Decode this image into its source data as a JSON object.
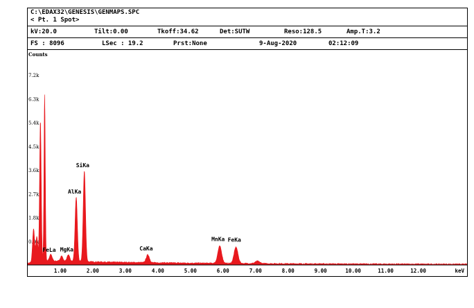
{
  "header": {
    "path": "C:\\EDAX32\\GENESIS\\GENMAPS.SPC",
    "spot": "< Pt.   1 Spot>",
    "kv": "kV:20.0",
    "tilt": "Tilt:0.00",
    "tkoff": "Tkoff:34.62",
    "det": "Det:SUTW",
    "reso": "Reso:128.5",
    "amp": "Amp.T:3.2",
    "fs": "FS : 8096",
    "lsec": "LSec : 19.2",
    "prst": "Prst:None",
    "date": "9-Aug-2020",
    "time": "02:12:09"
  },
  "chart_data": {
    "type": "area",
    "title": "",
    "xlabel": "keV",
    "ylabel": "Counts",
    "xlim": [
      0.0,
      13.5
    ],
    "ylim": [
      0,
      8096
    ],
    "x_ticks": [
      "1.00",
      "2.00",
      "3.00",
      "4.00",
      "5.00",
      "6.00",
      "7.00",
      "8.00",
      "9.00",
      "10.00",
      "11.00",
      "12.00"
    ],
    "y_ticks": [
      "0.9k",
      "1.8k",
      "2.7k",
      "3.6k",
      "4.5k",
      "5.4k",
      "6.3k",
      "7.2k"
    ],
    "series_color": "#e8191e",
    "background_level": 150,
    "peaks": [
      {
        "label": "FeLa",
        "energy": 0.71,
        "counts": 250,
        "width": 0.04
      },
      {
        "label": "MgKa",
        "energy": 1.25,
        "counts": 260,
        "width": 0.04
      },
      {
        "label": "AlKa",
        "energy": 1.49,
        "counts": 2450,
        "width": 0.035
      },
      {
        "label": "SiKa",
        "energy": 1.74,
        "counts": 3450,
        "width": 0.035
      },
      {
        "label": "CaKa",
        "energy": 3.69,
        "counts": 300,
        "width": 0.05
      },
      {
        "label": "MnKa",
        "energy": 5.9,
        "counts": 650,
        "width": 0.06
      },
      {
        "label": "FeKa",
        "energy": 6.4,
        "counts": 620,
        "width": 0.06
      }
    ],
    "unlabeled_peaks": [
      {
        "energy": 0.18,
        "counts": 1200,
        "width": 0.03
      },
      {
        "energy": 0.39,
        "counts": 5300,
        "width": 0.025
      },
      {
        "energy": 0.52,
        "counts": 6300,
        "width": 0.02
      },
      {
        "energy": 0.28,
        "counts": 900,
        "width": 0.03
      },
      {
        "energy": 1.04,
        "counts": 200,
        "width": 0.04
      },
      {
        "energy": 7.06,
        "counts": 90,
        "width": 0.07
      }
    ]
  }
}
